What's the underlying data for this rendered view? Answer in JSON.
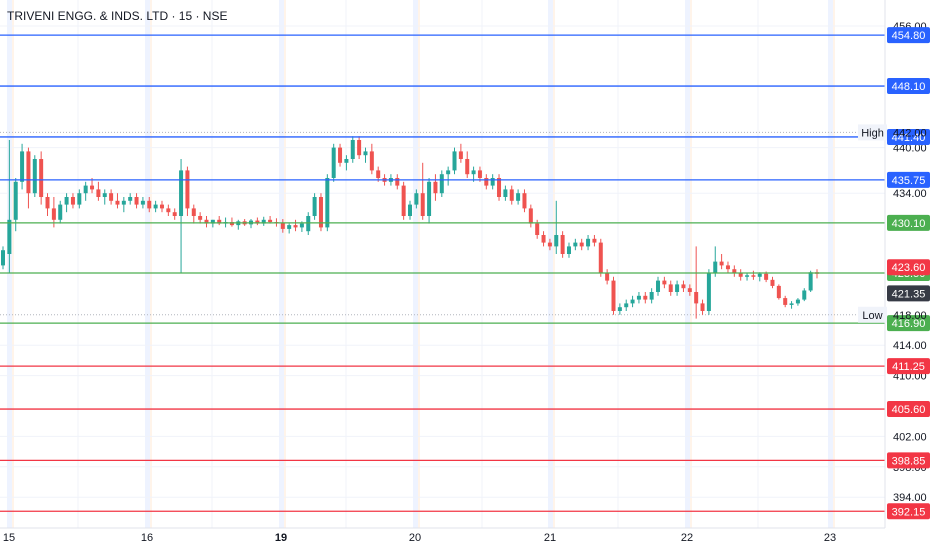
{
  "header": {
    "title": "TRIVENI ENGG. & INDS. LTD · 15 · NSE"
  },
  "colors": {
    "up": "#26a69a",
    "down": "#ef5350",
    "blue": "#2962ff",
    "green": "#4caf50",
    "red": "#f23645",
    "grid": "#f0f3fa",
    "text": "#131722",
    "axis": "#e0e3eb"
  },
  "chart_data": {
    "type": "candlestick",
    "title": "TRIVENI ENGG. & INDS. LTD · 15 · NSE",
    "ylim": [
      391,
      456
    ],
    "x_ticks": [
      {
        "label": "15",
        "bold": false
      },
      {
        "label": "16",
        "bold": false
      },
      {
        "label": "19",
        "bold": true
      },
      {
        "label": "20",
        "bold": false
      },
      {
        "label": "21",
        "bold": false
      },
      {
        "label": "22",
        "bold": false
      },
      {
        "label": "23",
        "bold": false
      }
    ],
    "y_ticks": [
      456,
      440,
      434,
      414,
      410,
      402,
      398,
      394
    ],
    "y_tick_labels": [
      "456.00",
      "440.00",
      "434.00",
      "414.00",
      "410.00",
      "402.00",
      "398.00",
      "394.00"
    ],
    "high_low": [
      {
        "tag": "High",
        "value": 442.0,
        "label": "442.00"
      },
      {
        "tag": "Low",
        "value": 418.0,
        "label": "418.00"
      }
    ],
    "levels": [
      {
        "value": 454.8,
        "label": "454.80",
        "color": "blue"
      },
      {
        "value": 448.1,
        "label": "448.10",
        "color": "blue"
      },
      {
        "value": 441.4,
        "label": "441.40",
        "color": "blue"
      },
      {
        "value": 435.75,
        "label": "435.75",
        "color": "blue"
      },
      {
        "value": 430.1,
        "label": "430.10",
        "color": "green"
      },
      {
        "value": 423.5,
        "label": "423.50",
        "color": "green"
      },
      {
        "value": 416.9,
        "label": "416.90",
        "color": "green"
      },
      {
        "value": 411.25,
        "label": "411.25",
        "color": "red"
      },
      {
        "value": 405.6,
        "label": "405.60",
        "color": "red"
      },
      {
        "value": 398.85,
        "label": "398.85",
        "color": "red"
      },
      {
        "value": 392.15,
        "label": "392.15",
        "color": "red"
      }
    ],
    "price_tags": [
      {
        "value": 423.6,
        "label": "423.60",
        "color": "#f23645"
      },
      {
        "value": 421.35,
        "label": "421.35",
        "color": "#363a45"
      }
    ],
    "candles": [
      [
        424.5,
        427.0,
        424.0,
        426.5
      ],
      [
        426.0,
        441.0,
        423.5,
        430.5
      ],
      [
        430.5,
        436.0,
        429.0,
        435.5
      ],
      [
        435.5,
        440.5,
        434.5,
        439.5
      ],
      [
        439.5,
        440.0,
        432.0,
        434.0
      ],
      [
        434.0,
        439.0,
        433.5,
        438.5
      ],
      [
        438.5,
        439.5,
        432.5,
        433.5
      ],
      [
        433.5,
        434.0,
        431.0,
        432.0
      ],
      [
        432.0,
        433.5,
        429.5,
        430.5
      ],
      [
        430.5,
        433.0,
        430.0,
        432.5
      ],
      [
        432.5,
        434.0,
        431.5,
        433.5
      ],
      [
        433.5,
        434.0,
        432.0,
        432.5
      ],
      [
        432.5,
        434.5,
        432.0,
        434.0
      ],
      [
        434.0,
        435.5,
        433.0,
        435.0
      ],
      [
        435.0,
        436.0,
        434.0,
        434.5
      ],
      [
        434.5,
        435.5,
        433.0,
        433.5
      ],
      [
        433.5,
        434.5,
        432.5,
        434.0
      ],
      [
        434.0,
        434.5,
        432.5,
        433.0
      ],
      [
        433.0,
        434.0,
        432.0,
        432.5
      ],
      [
        432.5,
        433.5,
        431.5,
        433.0
      ],
      [
        433.0,
        434.0,
        432.5,
        433.5
      ],
      [
        433.5,
        434.0,
        432.0,
        432.5
      ],
      [
        432.5,
        433.5,
        432.0,
        433.0
      ],
      [
        433.0,
        433.5,
        431.5,
        432.0
      ],
      [
        432.0,
        433.0,
        431.5,
        432.5
      ],
      [
        432.5,
        433.0,
        431.5,
        432.0
      ],
      [
        432.0,
        432.5,
        431.0,
        431.5
      ],
      [
        431.5,
        432.0,
        430.5,
        431.0
      ],
      [
        431.0,
        438.5,
        423.5,
        437.0
      ],
      [
        437.0,
        437.5,
        431.0,
        432.0
      ],
      [
        432.0,
        432.5,
        430.0,
        431.0
      ],
      [
        431.0,
        431.5,
        430.0,
        430.5
      ],
      [
        430.5,
        431.0,
        429.5,
        430.0
      ],
      [
        430.0,
        430.5,
        429.5,
        430.5
      ],
      [
        430.5,
        431.0,
        429.8,
        430.0
      ],
      [
        430.0,
        430.8,
        429.5,
        430.2
      ],
      [
        430.2,
        430.8,
        429.6,
        429.8
      ],
      [
        429.8,
        430.5,
        429.2,
        430.3
      ],
      [
        430.3,
        430.6,
        429.7,
        429.9
      ],
      [
        429.9,
        430.6,
        429.4,
        430.4
      ],
      [
        430.4,
        430.8,
        429.8,
        430.0
      ],
      [
        430.0,
        430.9,
        429.7,
        430.5
      ],
      [
        430.5,
        431.0,
        430.0,
        430.2
      ],
      [
        430.2,
        430.7,
        429.6,
        430.1
      ],
      [
        430.1,
        430.6,
        428.8,
        429.3
      ],
      [
        429.3,
        430.0,
        428.7,
        429.8
      ],
      [
        429.8,
        430.5,
        429.0,
        429.5
      ],
      [
        429.5,
        430.3,
        428.9,
        430.0
      ],
      [
        429.0,
        431.5,
        428.5,
        431.0
      ],
      [
        431.0,
        434.0,
        430.5,
        433.5
      ],
      [
        433.5,
        434.0,
        429.0,
        429.5
      ],
      [
        429.5,
        436.5,
        429.0,
        436.0
      ],
      [
        436.0,
        440.5,
        435.5,
        440.0
      ],
      [
        440.0,
        440.5,
        437.5,
        438.0
      ],
      [
        438.0,
        439.0,
        437.0,
        438.5
      ],
      [
        438.5,
        441.5,
        438.0,
        441.0
      ],
      [
        441.0,
        441.5,
        438.5,
        439.0
      ],
      [
        439.0,
        440.0,
        438.0,
        439.5
      ],
      [
        439.5,
        440.5,
        436.5,
        437.0
      ],
      [
        437.0,
        437.5,
        435.5,
        436.0
      ],
      [
        436.0,
        436.5,
        435.0,
        435.5
      ],
      [
        435.5,
        436.5,
        435.0,
        436.0
      ],
      [
        436.0,
        436.5,
        434.5,
        435.0
      ],
      [
        435.0,
        435.5,
        430.5,
        431.0
      ],
      [
        431.0,
        433.0,
        430.5,
        432.5
      ],
      [
        432.5,
        434.5,
        432.0,
        434.0
      ],
      [
        434.0,
        438.0,
        430.5,
        431.0
      ],
      [
        431.0,
        436.0,
        430.0,
        435.5
      ],
      [
        435.5,
        436.5,
        433.0,
        434.0
      ],
      [
        434.0,
        437.0,
        433.5,
        436.5
      ],
      [
        436.5,
        437.5,
        435.0,
        437.0
      ],
      [
        437.0,
        440.0,
        436.5,
        439.5
      ],
      [
        439.5,
        440.5,
        438.0,
        438.5
      ],
      [
        438.5,
        439.5,
        436.0,
        436.5
      ],
      [
        436.5,
        437.5,
        435.5,
        437.0
      ],
      [
        437.0,
        437.5,
        435.5,
        436.0
      ],
      [
        436.0,
        436.5,
        434.5,
        435.0
      ],
      [
        435.0,
        436.5,
        434.5,
        436.0
      ],
      [
        436.0,
        436.5,
        433.0,
        433.5
      ],
      [
        433.5,
        435.0,
        433.0,
        434.5
      ],
      [
        434.5,
        435.0,
        432.5,
        433.0
      ],
      [
        433.0,
        434.5,
        432.5,
        434.0
      ],
      [
        434.0,
        434.5,
        431.5,
        432.0
      ],
      [
        432.0,
        432.5,
        429.5,
        430.0
      ],
      [
        430.0,
        430.5,
        428.0,
        428.5
      ],
      [
        428.5,
        429.0,
        427.0,
        427.5
      ],
      [
        427.5,
        428.0,
        426.5,
        427.0
      ],
      [
        427.0,
        433.0,
        426.0,
        428.5
      ],
      [
        428.5,
        429.0,
        425.5,
        426.0
      ],
      [
        426.0,
        427.5,
        425.5,
        427.0
      ],
      [
        427.0,
        428.0,
        426.5,
        427.5
      ],
      [
        427.5,
        428.0,
        426.5,
        427.0
      ],
      [
        427.0,
        428.5,
        426.5,
        428.0
      ],
      [
        428.0,
        428.5,
        427.0,
        427.5
      ],
      [
        427.5,
        428.0,
        423.0,
        423.5
      ],
      [
        423.5,
        424.0,
        422.0,
        422.5
      ],
      [
        422.5,
        423.0,
        418.0,
        418.5
      ],
      [
        418.5,
        419.5,
        418.0,
        419.0
      ],
      [
        419.0,
        420.0,
        418.5,
        419.5
      ],
      [
        419.5,
        420.5,
        419.0,
        420.0
      ],
      [
        420.0,
        421.0,
        419.5,
        420.5
      ],
      [
        420.5,
        421.0,
        419.5,
        420.0
      ],
      [
        420.0,
        421.5,
        419.5,
        421.0
      ],
      [
        421.0,
        423.0,
        420.5,
        422.5
      ],
      [
        422.5,
        423.0,
        421.5,
        422.0
      ],
      [
        422.0,
        422.5,
        420.5,
        421.0
      ],
      [
        421.0,
        422.5,
        420.5,
        422.0
      ],
      [
        422.0,
        422.5,
        421.0,
        421.5
      ],
      [
        421.5,
        422.0,
        420.5,
        421.0
      ],
      [
        421.0,
        427.0,
        417.5,
        419.5
      ],
      [
        419.5,
        420.0,
        418.0,
        418.5
      ],
      [
        418.5,
        424.0,
        418.0,
        423.5
      ],
      [
        423.5,
        427.0,
        423.0,
        425.0
      ],
      [
        425.0,
        426.0,
        424.0,
        424.5
      ],
      [
        424.5,
        425.0,
        423.5,
        424.0
      ],
      [
        424.0,
        424.5,
        423.0,
        423.5
      ],
      [
        423.5,
        424.0,
        422.5,
        423.0
      ],
      [
        423.0,
        423.5,
        422.5,
        423.2
      ],
      [
        423.2,
        423.8,
        422.6,
        423.0
      ],
      [
        423.0,
        423.6,
        422.4,
        423.4
      ],
      [
        423.4,
        423.7,
        422.3,
        422.6
      ],
      [
        422.6,
        423.0,
        421.5,
        421.8
      ],
      [
        421.8,
        422.0,
        420.0,
        420.2
      ],
      [
        420.2,
        420.5,
        419.0,
        419.3
      ],
      [
        419.3,
        419.8,
        418.8,
        419.5
      ],
      [
        419.5,
        420.2,
        419.2,
        420.0
      ],
      [
        420.0,
        421.5,
        419.8,
        421.2
      ],
      [
        421.2,
        423.8,
        421.0,
        423.6
      ],
      [
        423.6,
        424.0,
        422.8,
        423.4
      ]
    ]
  }
}
